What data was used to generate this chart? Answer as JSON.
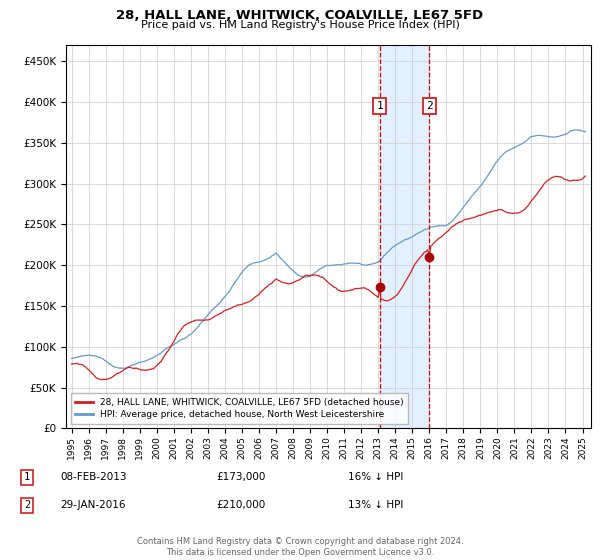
{
  "title": "28, HALL LANE, WHITWICK, COALVILLE, LE67 5FD",
  "subtitle": "Price paid vs. HM Land Registry's House Price Index (HPI)",
  "legend_line1": "28, HALL LANE, WHITWICK, COALVILLE, LE67 5FD (detached house)",
  "legend_line2": "HPI: Average price, detached house, North West Leicestershire",
  "annotation1_date": "08-FEB-2013",
  "annotation1_price": "£173,000",
  "annotation1_hpi": "16% ↓ HPI",
  "annotation1_label": "1",
  "annotation2_date": "29-JAN-2016",
  "annotation2_price": "£210,000",
  "annotation2_hpi": "13% ↓ HPI",
  "annotation2_label": "2",
  "footer": "Contains HM Land Registry data © Crown copyright and database right 2024.\nThis data is licensed under the Open Government Licence v3.0.",
  "hpi_color": "#6699cc",
  "price_color": "#cc2222",
  "dot_color": "#aa0000",
  "vline_color": "#cc0000",
  "shade_color": "#ddeeff",
  "ylim_max": 470000,
  "start_year": 1995,
  "end_year": 2025,
  "table_rows": [
    [
      "1",
      "08-FEB-2013",
      "£173,000",
      "16% ↓ HPI"
    ],
    [
      "2",
      "29-JAN-2016",
      "£210,000",
      "13% ↓ HPI"
    ]
  ]
}
